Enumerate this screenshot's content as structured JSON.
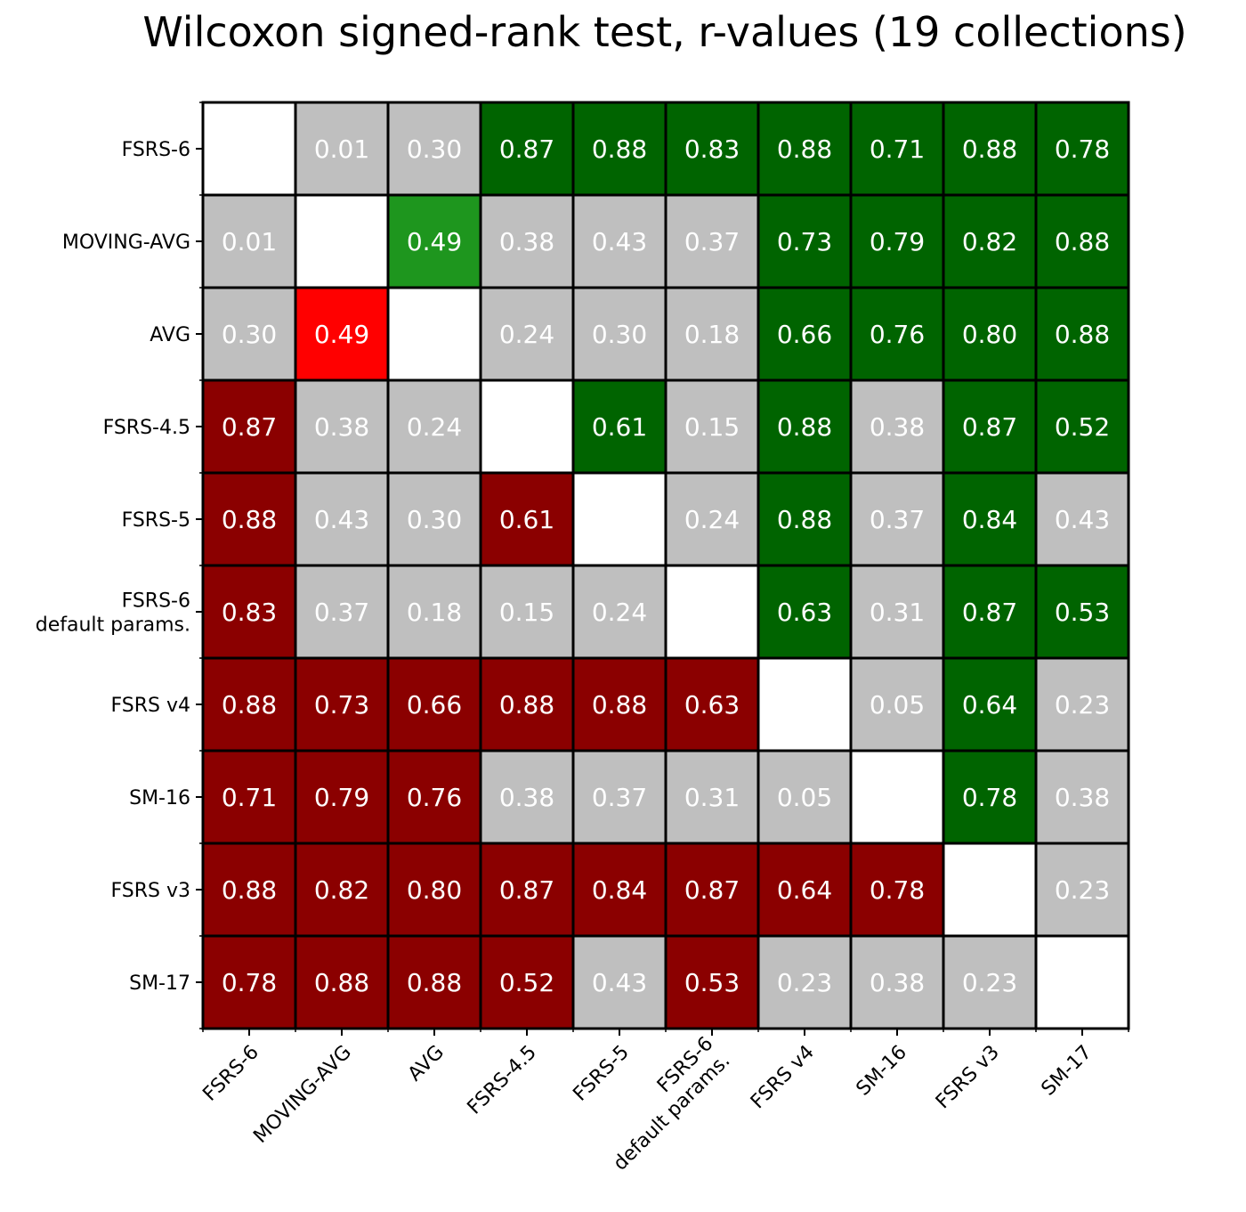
{
  "chart_data": {
    "type": "heatmap",
    "title": "Wilcoxon signed-rank test, r-values (19 collections)",
    "xlabel": "",
    "ylabel": "",
    "grid": true,
    "legend": "none",
    "row_labels": [
      [
        "FSRS-6"
      ],
      [
        "MOVING-AVG"
      ],
      [
        "AVG"
      ],
      [
        "FSRS-4.5"
      ],
      [
        "FSRS-5"
      ],
      [
        "FSRS-6",
        "default params."
      ],
      [
        "FSRS v4"
      ],
      [
        "SM-16"
      ],
      [
        "FSRS v3"
      ],
      [
        "SM-17"
      ]
    ],
    "col_labels": [
      [
        "FSRS-6"
      ],
      [
        "MOVING-AVG"
      ],
      [
        "AVG"
      ],
      [
        "FSRS-4.5"
      ],
      [
        "FSRS-5"
      ],
      [
        "FSRS-6",
        "default params."
      ],
      [
        "FSRS v4"
      ],
      [
        "SM-16"
      ],
      [
        "FSRS v3"
      ],
      [
        "SM-17"
      ]
    ],
    "values": [
      [
        null,
        "0.01",
        "0.30",
        "0.87",
        "0.88",
        "0.83",
        "0.88",
        "0.71",
        "0.88",
        "0.78"
      ],
      [
        "0.01",
        null,
        "0.49",
        "0.38",
        "0.43",
        "0.37",
        "0.73",
        "0.79",
        "0.82",
        "0.88"
      ],
      [
        "0.30",
        "0.49",
        null,
        "0.24",
        "0.30",
        "0.18",
        "0.66",
        "0.76",
        "0.80",
        "0.88"
      ],
      [
        "0.87",
        "0.38",
        "0.24",
        null,
        "0.61",
        "0.15",
        "0.88",
        "0.38",
        "0.87",
        "0.52"
      ],
      [
        "0.88",
        "0.43",
        "0.30",
        "0.61",
        null,
        "0.24",
        "0.88",
        "0.37",
        "0.84",
        "0.43"
      ],
      [
        "0.83",
        "0.37",
        "0.18",
        "0.15",
        "0.24",
        null,
        "0.63",
        "0.31",
        "0.87",
        "0.53"
      ],
      [
        "0.88",
        "0.73",
        "0.66",
        "0.88",
        "0.88",
        "0.63",
        null,
        "0.05",
        "0.64",
        "0.23"
      ],
      [
        "0.71",
        "0.79",
        "0.76",
        "0.38",
        "0.37",
        "0.31",
        "0.05",
        null,
        "0.78",
        "0.38"
      ],
      [
        "0.88",
        "0.82",
        "0.80",
        "0.87",
        "0.84",
        "0.87",
        "0.64",
        "0.78",
        null,
        "0.23"
      ],
      [
        "0.78",
        "0.88",
        "0.88",
        "0.52",
        "0.43",
        "0.53",
        "0.23",
        "0.38",
        "0.23",
        null
      ]
    ],
    "cell_colors": [
      [
        "W",
        "G",
        "G",
        "D",
        "D",
        "D",
        "D",
        "D",
        "D",
        "D"
      ],
      [
        "G",
        "W",
        "L",
        "G",
        "G",
        "G",
        "D",
        "D",
        "D",
        "D"
      ],
      [
        "G",
        "R",
        "W",
        "G",
        "G",
        "G",
        "D",
        "D",
        "D",
        "D"
      ],
      [
        "M",
        "G",
        "G",
        "W",
        "D",
        "G",
        "D",
        "G",
        "D",
        "D"
      ],
      [
        "M",
        "G",
        "G",
        "M",
        "W",
        "G",
        "D",
        "G",
        "D",
        "G"
      ],
      [
        "M",
        "G",
        "G",
        "G",
        "G",
        "W",
        "D",
        "G",
        "D",
        "D"
      ],
      [
        "M",
        "M",
        "M",
        "M",
        "M",
        "M",
        "W",
        "G",
        "D",
        "G"
      ],
      [
        "M",
        "M",
        "M",
        "G",
        "G",
        "G",
        "G",
        "W",
        "D",
        "G"
      ],
      [
        "M",
        "M",
        "M",
        "M",
        "M",
        "M",
        "M",
        "M",
        "W",
        "G"
      ],
      [
        "M",
        "M",
        "M",
        "M",
        "G",
        "M",
        "G",
        "G",
        "G",
        "W"
      ]
    ],
    "color_map": {
      "W": "#ffffff",
      "G": "#bfbfbf",
      "D": "#006400",
      "L": "#1e961e",
      "M": "#8b0000",
      "R": "#ff0000"
    }
  }
}
